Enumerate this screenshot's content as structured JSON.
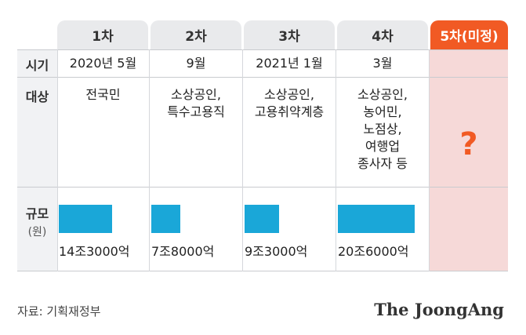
{
  "columns": [
    {
      "header": "1차",
      "date": "2020년 5월",
      "target": [
        "전국민"
      ],
      "amount": "14조3000억",
      "amount_value_trillion_won": 14.3
    },
    {
      "header": "2차",
      "date": "9월",
      "target": [
        "소상공인,",
        "특수고용직"
      ],
      "amount": "7조8000억",
      "amount_value_trillion_won": 7.8
    },
    {
      "header": "3차",
      "date": "2021년 1월",
      "target": [
        "소상공인,",
        "고용취약계층"
      ],
      "amount": "9조3000억",
      "amount_value_trillion_won": 9.3
    },
    {
      "header": "4차",
      "date": "3월",
      "target": [
        "소상공인,",
        "농어민,",
        "노점상,",
        "여행업",
        "종사자 등"
      ],
      "amount": "20조6000억",
      "amount_value_trillion_won": 20.6
    }
  ],
  "pending_column": {
    "header": "5차(미정)",
    "mark": "?"
  },
  "row_labels": {
    "timing": "시기",
    "target": "대상",
    "scale": "규모",
    "unit": "(원)"
  },
  "source": "자료: 기획재정부",
  "logo": "The JoongAng",
  "colors": {
    "bar": "#1aa7d8",
    "pending": "#f15a24",
    "pending_bg": "#f6d9d8",
    "header_bg": "#e9eaec"
  }
}
